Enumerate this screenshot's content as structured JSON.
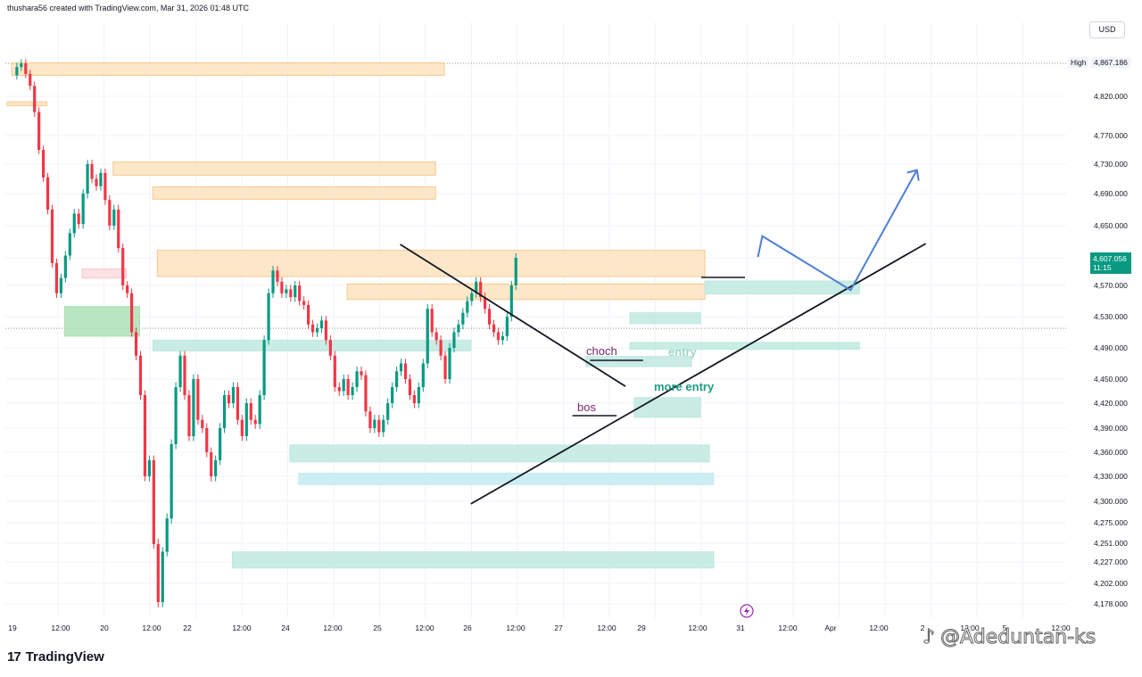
{
  "header": {
    "text": "thushara56 created with TradingView.com, Mar 31, 2026 01:48 UTC"
  },
  "currency": "USD",
  "high": {
    "label": "High",
    "value": "4,867.186"
  },
  "last_price": {
    "value": "4,607.056",
    "countdown": "11:15"
  },
  "brand": {
    "logo": "17",
    "name": "TradingView"
  },
  "watermark": {
    "icon": "tiktok-icon",
    "text": "@Adeduntan-ks"
  },
  "annotations": {
    "choch": "choch",
    "bos": "bos",
    "entry": "entry",
    "more_entry": "more  entry"
  },
  "colors": {
    "up": "#089981",
    "down": "#f23645",
    "supply": "#fbd9a8",
    "demand": "#bfe9df",
    "arrow": "#4f7fd6"
  },
  "chart_data": {
    "type": "candlestick",
    "title": "",
    "y_ticks": [
      4820,
      4770,
      4730,
      4690,
      4650,
      4607.056,
      4570,
      4530,
      4490,
      4450,
      4420,
      4390,
      4360,
      4330,
      4300,
      4275,
      4251,
      4227,
      4202,
      4178
    ],
    "y_tick_labels": [
      "4,820.000",
      "4,770.000",
      "4,730.000",
      "4,690.000",
      "4,650.000",
      "4,607.056",
      "4,570.000",
      "4,530.000",
      "4,490.000",
      "4,450.000",
      "4,420.000",
      "4,390.000",
      "4,360.000",
      "4,330.000",
      "4,300.000",
      "4,275.000",
      "4,251.000",
      "4,227.000",
      "4,202.000",
      "4,178.000"
    ],
    "x_tick_labels": [
      "19",
      "12:00",
      "20",
      "12:00",
      "22",
      "12:00",
      "24",
      "12:00",
      "25",
      "12:00",
      "26",
      "12:00",
      "27",
      "12:00",
      "29",
      "12:00",
      "31",
      "12:00",
      "Apr",
      "12:00",
      "2",
      "12:00",
      "5",
      "12:00"
    ],
    "price_path": [
      [
        0,
        4850
      ],
      [
        2,
        4862
      ],
      [
        3,
        4867
      ],
      [
        4,
        4852
      ],
      [
        5,
        4835
      ],
      [
        6,
        4800
      ],
      [
        7,
        4750
      ],
      [
        8,
        4712
      ],
      [
        9,
        4670
      ],
      [
        10,
        4600
      ],
      [
        11,
        4560
      ],
      [
        12,
        4580
      ],
      [
        13,
        4610
      ],
      [
        14,
        4640
      ],
      [
        15,
        4665
      ],
      [
        16,
        4652
      ],
      [
        17,
        4690
      ],
      [
        18,
        4730
      ],
      [
        19,
        4710
      ],
      [
        20,
        4700
      ],
      [
        21,
        4718
      ],
      [
        22,
        4682
      ],
      [
        23,
        4650
      ],
      [
        24,
        4670
      ],
      [
        25,
        4620
      ],
      [
        26,
        4570
      ],
      [
        27,
        4560
      ],
      [
        28,
        4510
      ],
      [
        29,
        4480
      ],
      [
        30,
        4430
      ],
      [
        31,
        4330
      ],
      [
        32,
        4350
      ],
      [
        33,
        4250
      ],
      [
        34,
        4180
      ],
      [
        35,
        4240
      ],
      [
        36,
        4280
      ],
      [
        37,
        4370
      ],
      [
        38,
        4440
      ],
      [
        39,
        4480
      ],
      [
        40,
        4430
      ],
      [
        41,
        4380
      ],
      [
        42,
        4450
      ],
      [
        43,
        4400
      ],
      [
        44,
        4390
      ],
      [
        45,
        4360
      ],
      [
        46,
        4330
      ],
      [
        47,
        4350
      ],
      [
        48,
        4390
      ],
      [
        49,
        4430
      ],
      [
        50,
        4420
      ],
      [
        51,
        4440
      ],
      [
        52,
        4400
      ],
      [
        53,
        4380
      ],
      [
        54,
        4420
      ],
      [
        55,
        4400
      ],
      [
        56,
        4395
      ],
      [
        57,
        4430
      ],
      [
        58,
        4500
      ],
      [
        59,
        4560
      ],
      [
        60,
        4590
      ],
      [
        61,
        4575
      ],
      [
        62,
        4560
      ],
      [
        63,
        4565
      ],
      [
        64,
        4555
      ],
      [
        65,
        4570
      ],
      [
        66,
        4550
      ],
      [
        67,
        4545
      ],
      [
        68,
        4520
      ],
      [
        69,
        4510
      ],
      [
        70,
        4515
      ],
      [
        71,
        4525
      ],
      [
        72,
        4500
      ],
      [
        73,
        4480
      ],
      [
        74,
        4440
      ],
      [
        75,
        4435
      ],
      [
        76,
        4450
      ],
      [
        77,
        4430
      ],
      [
        78,
        4440
      ],
      [
        79,
        4460
      ],
      [
        80,
        4455
      ],
      [
        81,
        4410
      ],
      [
        82,
        4390
      ],
      [
        83,
        4400
      ],
      [
        84,
        4385
      ],
      [
        85,
        4400
      ],
      [
        86,
        4420
      ],
      [
        87,
        4440
      ],
      [
        88,
        4460
      ],
      [
        89,
        4470
      ],
      [
        90,
        4450
      ],
      [
        91,
        4430
      ],
      [
        92,
        4420
      ],
      [
        93,
        4440
      ],
      [
        94,
        4470
      ],
      [
        95,
        4540
      ],
      [
        96,
        4510
      ],
      [
        97,
        4500
      ],
      [
        98,
        4480
      ],
      [
        99,
        4450
      ],
      [
        100,
        4490
      ],
      [
        101,
        4510
      ],
      [
        102,
        4520
      ],
      [
        103,
        4535
      ],
      [
        104,
        4550
      ],
      [
        105,
        4560
      ],
      [
        106,
        4575
      ],
      [
        107,
        4555
      ],
      [
        108,
        4540
      ],
      [
        109,
        4520
      ],
      [
        110,
        4510
      ],
      [
        111,
        4500
      ],
      [
        112,
        4505
      ],
      [
        113,
        4530
      ],
      [
        114,
        4570
      ],
      [
        115,
        4607.056
      ]
    ],
    "price_path_x_unit": "bar index (19 Mar → 31 Mar)",
    "zones": [
      {
        "kind": "supply",
        "x0": 1,
        "x1": 99,
        "y0": 4850,
        "y1": 4868
      },
      {
        "kind": "supply",
        "x0": 0,
        "x1": 9,
        "y0": 4808,
        "y1": 4813
      },
      {
        "kind": "supply",
        "x0": 24,
        "x1": 97,
        "y0": 4715,
        "y1": 4733
      },
      {
        "kind": "supply",
        "x0": 33,
        "x1": 97,
        "y0": 4683,
        "y1": 4699
      },
      {
        "kind": "supply",
        "x0": 34,
        "x1": 158,
        "y0": 4582,
        "y1": 4617
      },
      {
        "kind": "supply",
        "x0": 77,
        "x1": 158,
        "y0": 4552,
        "y1": 4572
      },
      {
        "kind": "pink",
        "x0": 17,
        "x1": 27,
        "y0": 4580,
        "y1": 4592
      },
      {
        "kind": "demand-strong",
        "x0": 13,
        "x1": 30,
        "y0": 4505,
        "y1": 4543
      },
      {
        "kind": "demand",
        "x0": 33,
        "x1": 105,
        "y0": 4486,
        "y1": 4500
      },
      {
        "kind": "demand",
        "x0": 158,
        "x1": 193,
        "y0": 4559,
        "y1": 4576
      },
      {
        "kind": "demand",
        "x0": 141,
        "x1": 157,
        "y0": 4521,
        "y1": 4535
      },
      {
        "kind": "demand",
        "x0": 141,
        "x1": 193,
        "y0": 4488,
        "y1": 4497
      },
      {
        "kind": "demand",
        "x0": 131,
        "x1": 155,
        "y0": 4466,
        "y1": 4479
      },
      {
        "kind": "demand",
        "x0": 142,
        "x1": 157,
        "y0": 4403,
        "y1": 4427
      },
      {
        "kind": "demand",
        "x0": 64,
        "x1": 159,
        "y0": 4348,
        "y1": 4369
      },
      {
        "kind": "demand-light",
        "x0": 66,
        "x1": 160,
        "y0": 4320,
        "y1": 4334
      },
      {
        "kind": "demand",
        "x0": 51,
        "x1": 160,
        "y0": 4220,
        "y1": 4240
      }
    ],
    "trendlines": [
      {
        "x0": 89,
        "y0": 4625,
        "x1": 140,
        "y1": 4441
      },
      {
        "x0": 105,
        "y0": 4297,
        "x1": 208,
        "y1": 4626
      }
    ],
    "projection": [
      [
        170,
        4608
      ],
      [
        171,
        4636
      ],
      [
        191,
        4564
      ],
      [
        206,
        4722
      ]
    ],
    "bos_level": {
      "x0": 128,
      "x1": 138,
      "y": 4405
    },
    "choch_level": {
      "x0": 132,
      "x1": 144,
      "y": 4474
    },
    "high_line": 4867.186,
    "current_line": 4515
  }
}
